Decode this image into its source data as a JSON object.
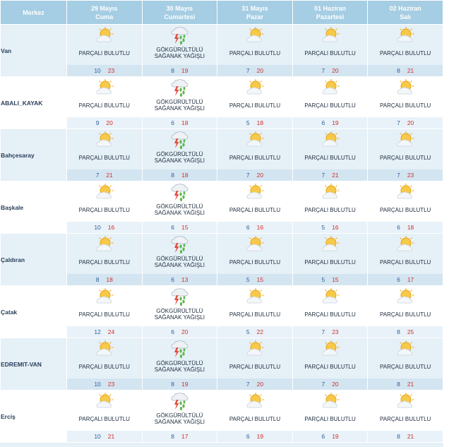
{
  "header": {
    "merkez": "Merkez",
    "days": [
      {
        "date": "29 Mayıs",
        "weekday": "Cuma"
      },
      {
        "date": "30 Mayıs",
        "weekday": "Cumartesi"
      },
      {
        "date": "31 Mayıs",
        "weekday": "Pazar"
      },
      {
        "date": "01 Haziran",
        "weekday": "Pazartesi"
      },
      {
        "date": "02 Haziran",
        "weekday": "Salı"
      }
    ]
  },
  "conditions": {
    "pb": "PARÇALI BULUTLU",
    "gs": "GÖKGÜRÜLTÜLÜ SAĞANAK YAĞIŞLI"
  },
  "icons": {
    "pb": "partly-cloudy-icon",
    "gs": "thunderstorm-icon"
  },
  "colors": {
    "header": "#a5cde3",
    "low": "#2f5f9e",
    "high": "#d0302b"
  },
  "rows": [
    {
      "city": "Van",
      "days": [
        {
          "c": "pb",
          "lo": "10",
          "hi": "23"
        },
        {
          "c": "gs",
          "lo": "8",
          "hi": "19"
        },
        {
          "c": "pb",
          "lo": "7",
          "hi": "20"
        },
        {
          "c": "pb",
          "lo": "7",
          "hi": "20"
        },
        {
          "c": "pb",
          "lo": "8",
          "hi": "21"
        }
      ]
    },
    {
      "city": "ABALI_KAYAK",
      "days": [
        {
          "c": "pb",
          "lo": "9",
          "hi": "20"
        },
        {
          "c": "gs",
          "lo": "6",
          "hi": "18"
        },
        {
          "c": "pb",
          "lo": "5",
          "hi": "18"
        },
        {
          "c": "pb",
          "lo": "6",
          "hi": "19"
        },
        {
          "c": "pb",
          "lo": "7",
          "hi": "20"
        }
      ]
    },
    {
      "city": "Bahçesaray",
      "days": [
        {
          "c": "pb",
          "lo": "7",
          "hi": "21"
        },
        {
          "c": "gs",
          "lo": "8",
          "hi": "18"
        },
        {
          "c": "pb",
          "lo": "7",
          "hi": "20"
        },
        {
          "c": "pb",
          "lo": "7",
          "hi": "21"
        },
        {
          "c": "pb",
          "lo": "7",
          "hi": "23"
        }
      ]
    },
    {
      "city": "Başkale",
      "days": [
        {
          "c": "pb",
          "lo": "10",
          "hi": "16"
        },
        {
          "c": "gs",
          "lo": "6",
          "hi": "15"
        },
        {
          "c": "pb",
          "lo": "6",
          "hi": "16"
        },
        {
          "c": "pb",
          "lo": "5",
          "hi": "16"
        },
        {
          "c": "pb",
          "lo": "6",
          "hi": "18"
        }
      ]
    },
    {
      "city": "Çaldıran",
      "days": [
        {
          "c": "pb",
          "lo": "8",
          "hi": "18"
        },
        {
          "c": "gs",
          "lo": "6",
          "hi": "13"
        },
        {
          "c": "pb",
          "lo": "5",
          "hi": "15"
        },
        {
          "c": "pb",
          "lo": "5",
          "hi": "15"
        },
        {
          "c": "pb",
          "lo": "6",
          "hi": "17"
        }
      ]
    },
    {
      "city": "Çatak",
      "days": [
        {
          "c": "pb",
          "lo": "12",
          "hi": "24"
        },
        {
          "c": "gs",
          "lo": "6",
          "hi": "20"
        },
        {
          "c": "pb",
          "lo": "5",
          "hi": "22"
        },
        {
          "c": "pb",
          "lo": "7",
          "hi": "23"
        },
        {
          "c": "pb",
          "lo": "8",
          "hi": "25"
        }
      ]
    },
    {
      "city": "EDREMIT-VAN",
      "days": [
        {
          "c": "pb",
          "lo": "10",
          "hi": "23"
        },
        {
          "c": "gs",
          "lo": "8",
          "hi": "19"
        },
        {
          "c": "pb",
          "lo": "7",
          "hi": "20"
        },
        {
          "c": "pb",
          "lo": "7",
          "hi": "20"
        },
        {
          "c": "pb",
          "lo": "8",
          "hi": "21"
        }
      ]
    },
    {
      "city": "Erciş",
      "days": [
        {
          "c": "pb",
          "lo": "10",
          "hi": "21"
        },
        {
          "c": "gs",
          "lo": "8",
          "hi": "17"
        },
        {
          "c": "pb",
          "lo": "6",
          "hi": "19"
        },
        {
          "c": "pb",
          "lo": "6",
          "hi": "19"
        },
        {
          "c": "pb",
          "lo": "8",
          "hi": "21"
        }
      ]
    }
  ]
}
